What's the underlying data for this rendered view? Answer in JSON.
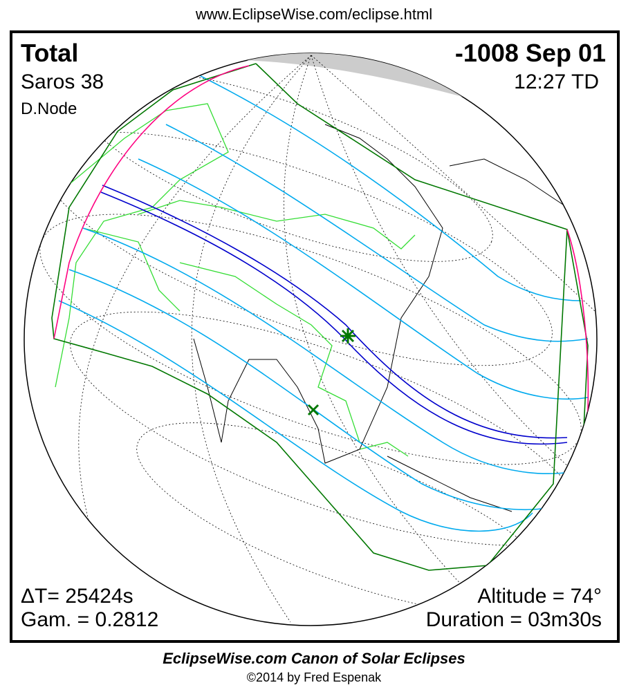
{
  "header_url": "www.EclipseWise.com/eclipse.html",
  "eclipse": {
    "type": "Total",
    "date": "-1008 Sep 01",
    "saros": "Saros  38",
    "time": "12:27 TD",
    "node": "D.Node"
  },
  "stats": {
    "delta_t": "ΔT=  25424s",
    "gamma": "Gam. = 0.2812",
    "altitude": "Altitude = 74°",
    "duration": "Duration = 03m30s"
  },
  "footer": {
    "title": "EclipseWise.com Canon of Solar Eclipses",
    "copyright": "©2014 by Fred Espenak"
  },
  "colors": {
    "path": "#0000cc",
    "penumbra_limits": "#007700",
    "rise_set": "#ff0080",
    "magnitude_lines": "#00aaee",
    "borders": "#33dd33"
  }
}
